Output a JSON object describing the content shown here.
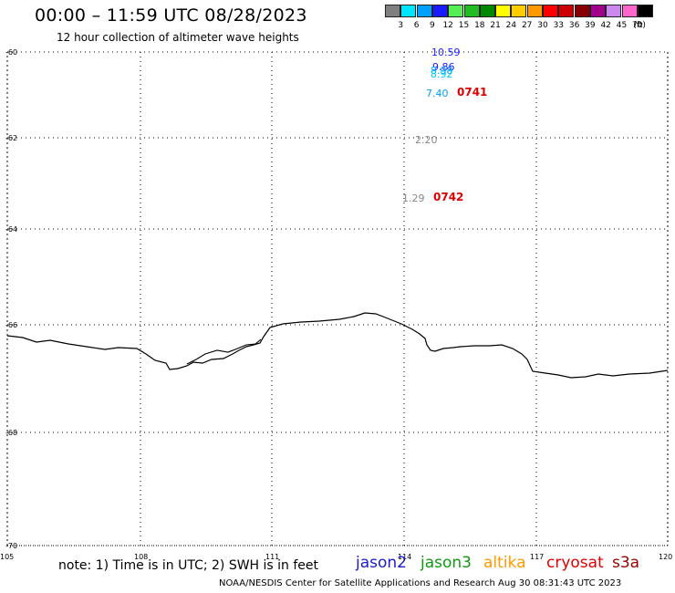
{
  "header": {
    "title": "00:00 – 11:59 UTC 08/28/2023",
    "subtitle": "12 hour collection of altimeter wave heights"
  },
  "legend": {
    "unit": "(ft)",
    "items": [
      {
        "label": "3",
        "color": "#7f7f7f"
      },
      {
        "label": "6",
        "color": "#00e5ff"
      },
      {
        "label": "9",
        "color": "#00a0ff"
      },
      {
        "label": "12",
        "color": "#1b1bff"
      },
      {
        "label": "15",
        "color": "#55ee55"
      },
      {
        "label": "18",
        "color": "#22bb22"
      },
      {
        "label": "21",
        "color": "#008800"
      },
      {
        "label": "24",
        "color": "#ffff00"
      },
      {
        "label": "27",
        "color": "#ffcc00"
      },
      {
        "label": "30",
        "color": "#ff9900"
      },
      {
        "label": "33",
        "color": "#ff0000"
      },
      {
        "label": "36",
        "color": "#cc0000"
      },
      {
        "label": "39",
        "color": "#880000"
      },
      {
        "label": "42",
        "color": "#a0008c"
      },
      {
        "label": "45",
        "color": "#cc88ee"
      },
      {
        "label": "70",
        "color": "#ff66cc"
      },
      {
        "label": "",
        "color": "#000000"
      }
    ]
  },
  "map": {
    "lat_ticks": [
      "-60",
      "-62",
      "-64",
      "-66",
      "-68",
      "-70"
    ],
    "lon_ticks": [
      "105",
      "108",
      "111",
      "114",
      "117",
      "120"
    ],
    "observations": [
      {
        "text": "10.59",
        "color": "#1b1bff"
      },
      {
        "text": "9.86",
        "color": "#1b1bff"
      },
      {
        "text": "8.98",
        "color": "#00a0ff"
      },
      {
        "text": "8.92",
        "color": "#00c8ff"
      },
      {
        "text": "7.40",
        "color": "#00a0ff"
      },
      {
        "text": "2.20",
        "color": "#888888"
      },
      {
        "text": "1.29",
        "color": "#888888"
      }
    ],
    "time_labels": [
      {
        "text": "0741",
        "color": "#dd0000"
      },
      {
        "text": "0742",
        "color": "#dd0000"
      }
    ]
  },
  "footer": {
    "note": "note: 1) Time is in UTC; 2) SWH is in feet",
    "credit": "NOAA/NESDIS Center for Satellite Applications and Research    Aug 30 08:31:43 UTC 2023",
    "missions": [
      {
        "name": "jason2",
        "color": "#1b1bcc"
      },
      {
        "name": "jason3",
        "color": "#119911"
      },
      {
        "name": "altika",
        "color": "#ff9900"
      },
      {
        "name": "cryosat",
        "color": "#dd0000"
      },
      {
        "name": "s3a",
        "color": "#990000"
      }
    ]
  }
}
